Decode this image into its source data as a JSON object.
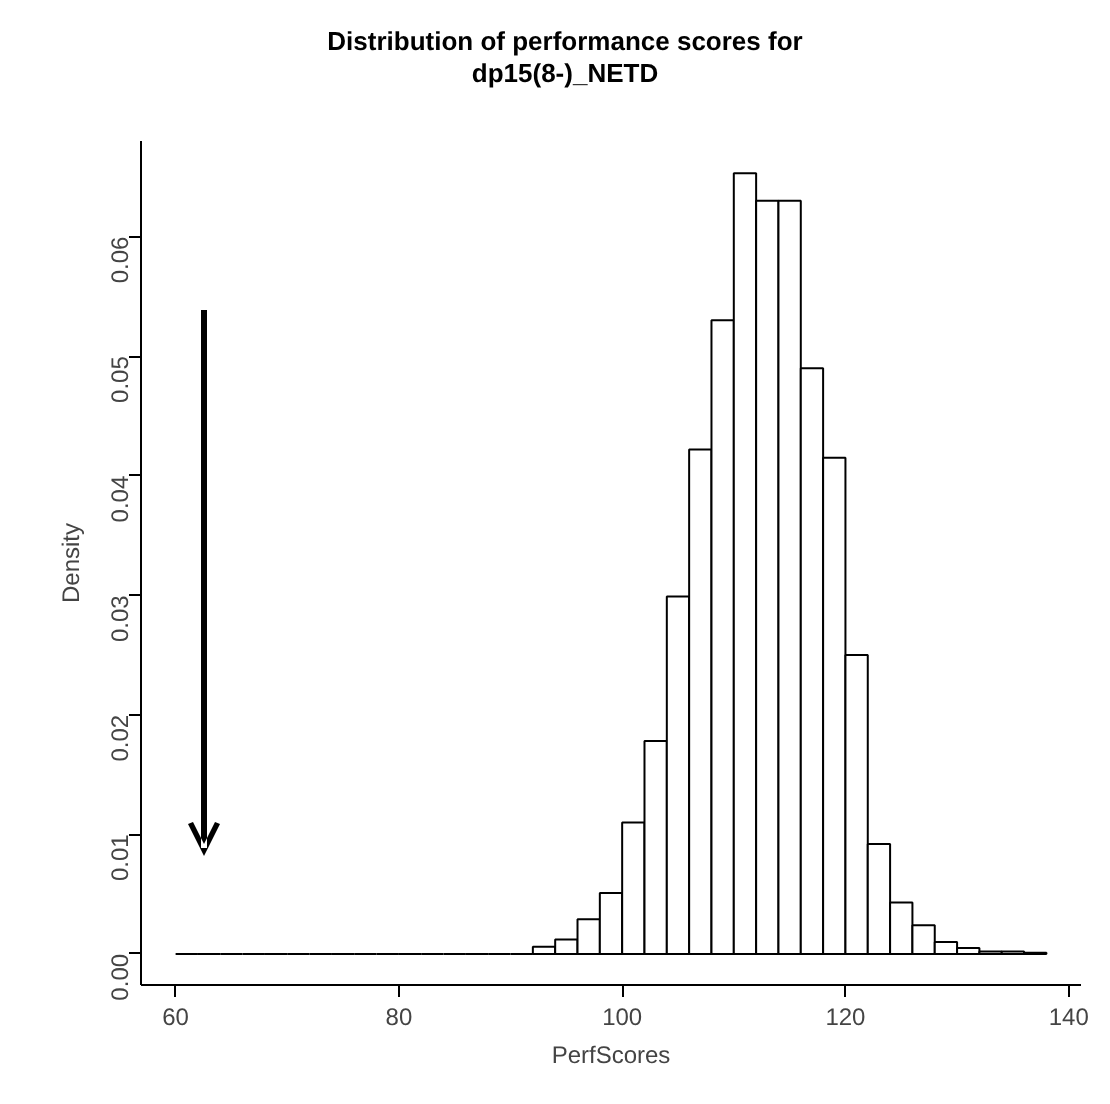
{
  "chart_data": {
    "type": "histogram",
    "title": "Distribution of performance scores for\ndp15(8-)_NETD",
    "xlabel": "PerfScores",
    "ylabel": "Density",
    "bins": [
      60,
      62,
      64,
      66,
      68,
      70,
      72,
      74,
      76,
      78,
      80,
      82,
      84,
      86,
      88,
      90,
      92,
      94,
      96,
      98,
      100,
      102,
      104,
      106,
      108,
      110,
      112,
      114,
      116,
      118,
      120,
      122,
      124,
      126,
      128,
      130,
      132,
      134,
      136,
      138
    ],
    "values": [
      0,
      0,
      0,
      0,
      0,
      0,
      0,
      0,
      0,
      0,
      0,
      0,
      0,
      0,
      0,
      0,
      0.0006,
      0.0012,
      0.0029,
      0.0051,
      0.011,
      0.0178,
      0.0299,
      0.0422,
      0.053,
      0.0653,
      0.063,
      0.063,
      0.049,
      0.0415,
      0.025,
      0.0092,
      0.0043,
      0.0024,
      0.001,
      0.0005,
      0.0002,
      0.0002,
      0.0001
    ],
    "xlim": [
      56.9,
      141.1
    ],
    "ylim": [
      -0.0026,
      0.068
    ],
    "xticks": [
      60,
      80,
      100,
      120,
      140
    ],
    "yticks": [
      {
        "value": 0,
        "label": "0.00"
      },
      {
        "value": 0.01,
        "label": "0.01"
      },
      {
        "value": 0.02,
        "label": "0.02"
      },
      {
        "value": 0.03,
        "label": "0.03"
      },
      {
        "value": 0.04,
        "label": "0.04"
      },
      {
        "value": 0.05,
        "label": "0.05"
      },
      {
        "value": 0.06,
        "label": "0.06"
      }
    ],
    "grid": false
  }
}
